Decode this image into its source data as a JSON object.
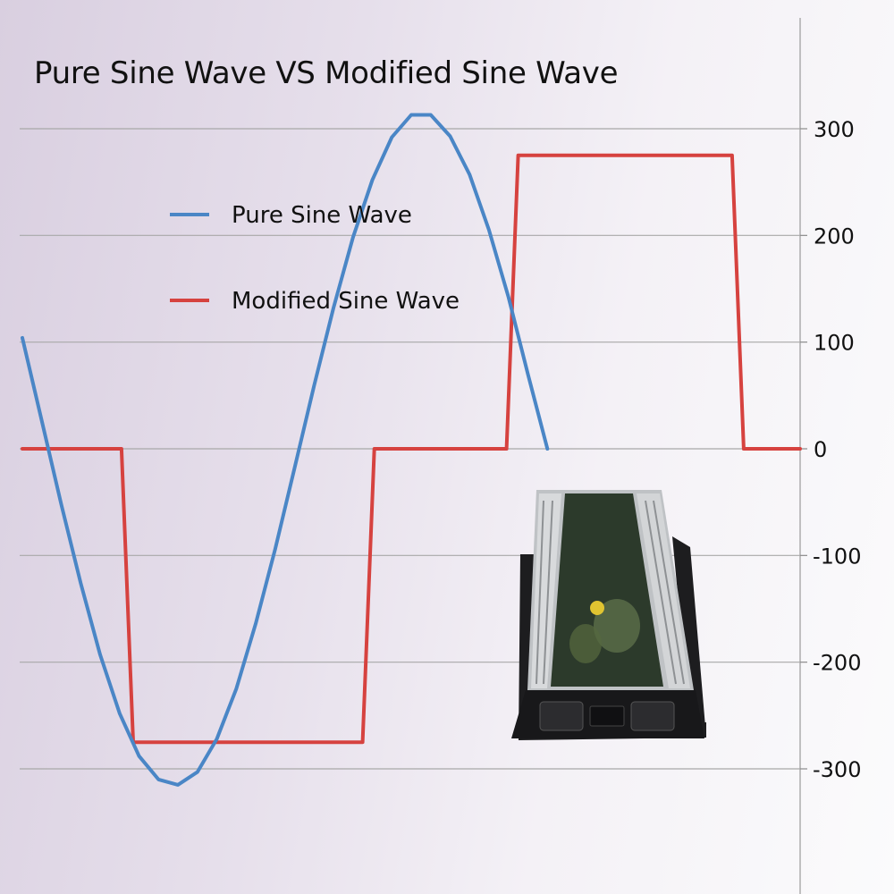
{
  "chart_data": {
    "type": "line",
    "title": "Pure Sine Wave VS Modified Sine Wave",
    "xlabel": "",
    "ylabel": "",
    "ylim": [
      -300,
      300
    ],
    "y_ticks": [
      300,
      200,
      100,
      0,
      -100,
      -200,
      -300
    ],
    "y_tick_labels": [
      "300",
      "200",
      "100",
      "0",
      "-100",
      "-200",
      "-300"
    ],
    "grid": true,
    "legend_placement": "upper-left",
    "series": [
      {
        "name": "Pure Sine Wave",
        "color": "#4a86c6",
        "x": [
          0,
          10,
          20,
          30,
          40,
          50,
          60,
          70,
          80,
          90,
          100,
          110,
          120,
          130,
          140,
          150,
          160,
          170,
          180,
          190,
          200,
          210,
          220,
          230,
          240,
          250,
          260,
          270,
          280,
          290,
          300,
          310,
          320,
          330,
          340,
          350,
          360,
          370,
          380,
          390,
          400
        ],
        "y": [
          104,
          26,
          -52,
          -126,
          -193,
          -248,
          -288,
          -310,
          -315,
          -303,
          -272,
          -225,
          -164,
          -94,
          -18,
          59,
          132,
          198,
          252,
          292,
          313,
          313,
          293,
          257,
          205,
          142,
          70,
          0,
          0,
          0,
          0,
          0,
          0,
          0,
          0,
          0,
          0,
          0,
          0,
          0,
          0
        ]
      },
      {
        "name": "Modified Sine Wave",
        "color": "#d6423f",
        "x": [
          0,
          51,
          57,
          175,
          181,
          249,
          255,
          365,
          371,
          400
        ],
        "y": [
          0,
          0,
          -275,
          -275,
          0,
          0,
          275,
          275,
          0,
          0
        ]
      }
    ]
  }
}
